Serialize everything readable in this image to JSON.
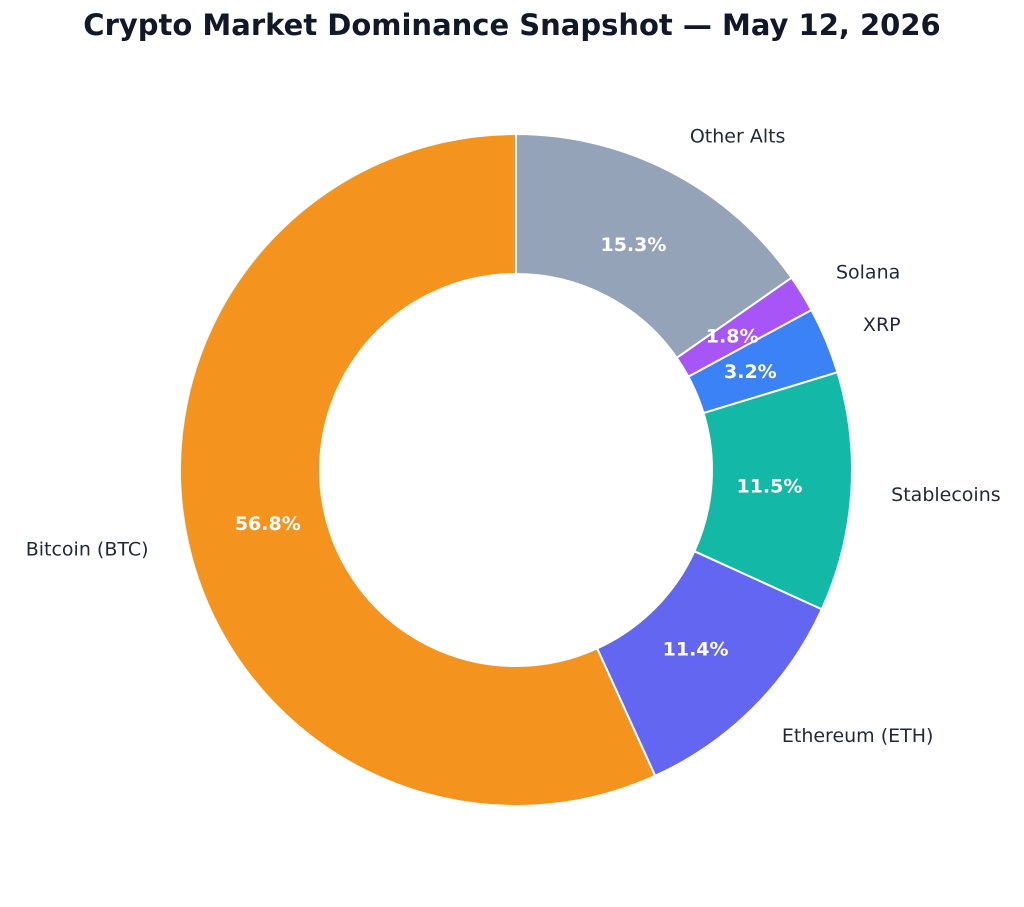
{
  "chart_data": {
    "type": "pie",
    "variant": "donut",
    "title": "Crypto Market Dominance Snapshot — May 12, 2026",
    "categories": [
      "Bitcoin (BTC)",
      "Ethereum (ETH)",
      "Stablecoins",
      "XRP",
      "Solana",
      "Other Alts"
    ],
    "values": [
      56.8,
      11.4,
      11.5,
      3.2,
      1.8,
      15.3
    ],
    "value_labels": [
      "56.8%",
      "11.4%",
      "11.5%",
      "3.2%",
      "1.8%",
      "15.3%"
    ],
    "colors": [
      "#f5931f",
      "#6366f1",
      "#14b8a6",
      "#3b82f6",
      "#a855f7",
      "#94a3b8"
    ],
    "start": "top",
    "direction": "counterclockwise",
    "legend": "none"
  }
}
